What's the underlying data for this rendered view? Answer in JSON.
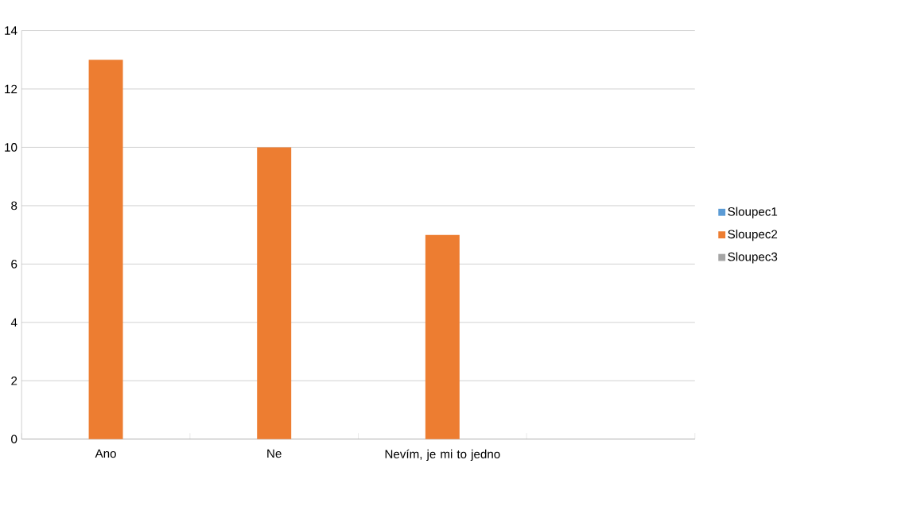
{
  "chart_data": {
    "type": "bar",
    "categories": [
      "Ano",
      "Ne",
      "Nevím, je mi to jedno",
      null
    ],
    "series": [
      {
        "name": "Sloupec1",
        "color": "#5b9bd5",
        "values": [
          null,
          null,
          null,
          null
        ]
      },
      {
        "name": "Sloupec2",
        "color": "#ed7d31",
        "values": [
          13,
          10,
          7,
          null
        ]
      },
      {
        "name": "Sloupec3",
        "color": "#a5a5a5",
        "values": [
          null,
          null,
          null,
          null
        ]
      }
    ],
    "ylim": [
      0,
      14
    ],
    "yticks": [
      0,
      2,
      4,
      6,
      8,
      10,
      12,
      14
    ],
    "grid": "y",
    "legend": "right"
  }
}
